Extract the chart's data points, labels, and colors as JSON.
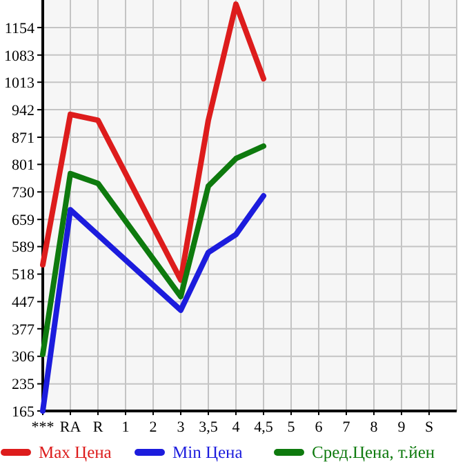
{
  "chart_data": {
    "type": "line",
    "categories": [
      "***",
      "RA",
      "R",
      "1",
      "2",
      "3",
      "3,5",
      "4",
      "4,5",
      "5",
      "6",
      "7",
      "8",
      "9",
      "S"
    ],
    "ylim": [
      165,
      1225
    ],
    "yticks": [
      165,
      235,
      306,
      377,
      447,
      518,
      589,
      659,
      730,
      801,
      871,
      942,
      1013,
      1083,
      1154
    ],
    "grid": true,
    "legend": "bottom",
    "marker": "none",
    "line_style": "solid",
    "series": [
      {
        "name": "Max Цена",
        "color": "#dd1c1c",
        "values": [
          542,
          930,
          915,
          null,
          null,
          503,
          915,
          1214,
          1022,
          null,
          null,
          null,
          null,
          null,
          null
        ]
      },
      {
        "name": "Min Цена",
        "color": "#1c1cdd",
        "values": [
          165,
          684,
          null,
          null,
          null,
          425,
          574,
          620,
          720,
          null,
          null,
          null,
          null,
          null,
          null
        ]
      },
      {
        "name": "Сред.Цена, т.йен",
        "color": "#0e7a0e",
        "values": [
          311,
          777,
          752,
          null,
          null,
          460,
          745,
          816,
          848,
          null,
          null,
          null,
          null,
          null,
          null
        ]
      }
    ]
  }
}
